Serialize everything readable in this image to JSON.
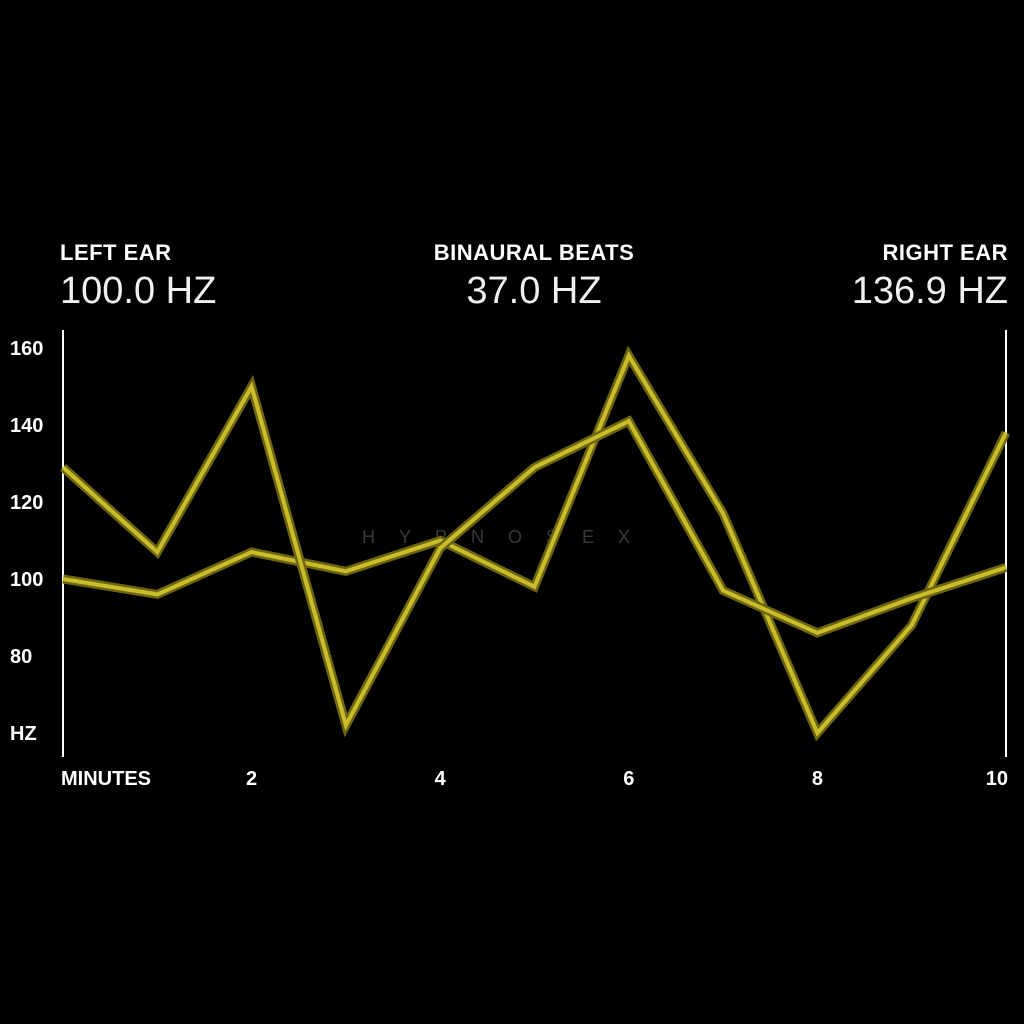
{
  "header": {
    "left": {
      "label": "LEFT EAR",
      "value": "100.0 HZ"
    },
    "center": {
      "label": "BINAURAL BEATS",
      "value": "37.0 HZ"
    },
    "right": {
      "label": "RIGHT EAR",
      "value": "136.9 HZ"
    }
  },
  "watermark": "HYPNOSEX",
  "chart_data": {
    "type": "line",
    "x": [
      0,
      1,
      2,
      3,
      4,
      5,
      6,
      7,
      8,
      9,
      10
    ],
    "series": [
      {
        "values": [
          100,
          96,
          107,
          102,
          110,
          98,
          158,
          117,
          60,
          88,
          138
        ]
      },
      {
        "values": [
          129,
          107,
          150,
          62,
          108,
          129,
          141,
          97,
          86,
          95,
          103
        ]
      }
    ],
    "xlim": [
      0,
      10
    ],
    "ylim": [
      60,
      160
    ],
    "xticks": [
      {
        "value": 0,
        "label": "MINUTES"
      },
      {
        "value": 2,
        "label": "2"
      },
      {
        "value": 4,
        "label": "4"
      },
      {
        "value": 6,
        "label": "6"
      },
      {
        "value": 8,
        "label": "8"
      },
      {
        "value": 10,
        "label": "10"
      }
    ],
    "yticks": [
      {
        "value": 160,
        "label": "160"
      },
      {
        "value": 140,
        "label": "140"
      },
      {
        "value": 120,
        "label": "120"
      },
      {
        "value": 100,
        "label": "100"
      },
      {
        "value": 80,
        "label": "80"
      },
      {
        "value": 60,
        "label": "HZ"
      }
    ],
    "line_color": "#c9bd2a",
    "line_edge_color": "#6e6514",
    "axis_color": "#ffffff",
    "background": "#000000",
    "grid": false
  }
}
